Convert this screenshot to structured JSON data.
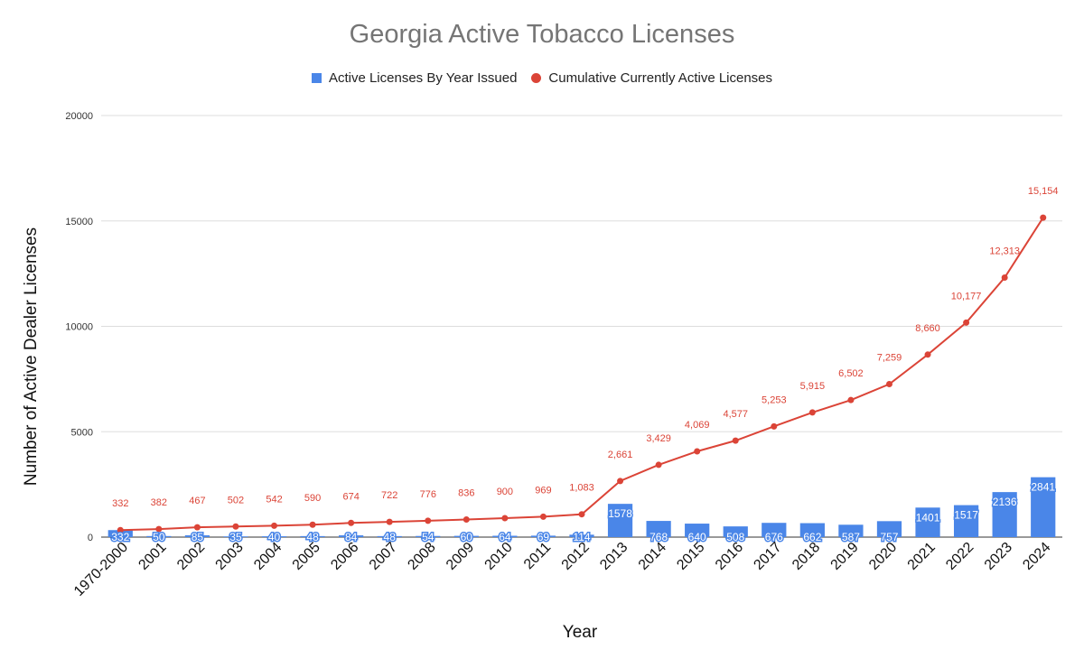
{
  "colors": {
    "bars": "#4a86e8",
    "line": "#db4437",
    "title": "#757575",
    "grid": "#dddddd"
  },
  "chart_data": {
    "type": "bar",
    "title": "Georgia Active Tobacco Licenses",
    "xlabel": "Year",
    "ylabel": "Number of Active Dealer Licenses",
    "ylim": [
      0,
      20000
    ],
    "yticks": [
      "0",
      "5000",
      "10000",
      "15000",
      "20000"
    ],
    "grid": true,
    "legend_position": "top",
    "categories": [
      "1970-2000",
      "2001",
      "2002",
      "2003",
      "2004",
      "2005",
      "2006",
      "2007",
      "2008",
      "2009",
      "2010",
      "2011",
      "2012",
      "2013",
      "2014",
      "2015",
      "2016",
      "2017",
      "2018",
      "2019",
      "2020",
      "2021",
      "2022",
      "2023",
      "2024"
    ],
    "series": [
      {
        "name": "Active Licenses By Year Issued",
        "type": "bar",
        "values": [
          332,
          50,
          85,
          35,
          40,
          48,
          84,
          48,
          54,
          60,
          64,
          69,
          114,
          1578,
          768,
          640,
          508,
          676,
          662,
          587,
          757,
          1401,
          1517,
          2136,
          2841
        ],
        "labels": [
          "332",
          "50",
          "85",
          "35",
          "40",
          "48",
          "84",
          "48",
          "54",
          "60",
          "64",
          "69",
          "114",
          "1578",
          "768",
          "640",
          "508",
          "676",
          "662",
          "587",
          "757",
          "1401",
          "1517",
          "2136",
          "2841"
        ]
      },
      {
        "name": "Cumulative Currently Active Licenses",
        "type": "line",
        "values": [
          332,
          382,
          467,
          502,
          542,
          590,
          674,
          722,
          776,
          836,
          900,
          969,
          1083,
          2661,
          3429,
          4069,
          4577,
          5253,
          5915,
          6502,
          7259,
          8660,
          10177,
          12313,
          15154
        ],
        "labels": [
          "332",
          "382",
          "467",
          "502",
          "542",
          "590",
          "674",
          "722",
          "776",
          "836",
          "900",
          "969",
          "1,083",
          "2,661",
          "3,429",
          "4,069",
          "4,577",
          "5,253",
          "5,915",
          "6,502",
          "7,259",
          "8,660",
          "10,177",
          "12,313",
          "15,154"
        ]
      }
    ]
  }
}
